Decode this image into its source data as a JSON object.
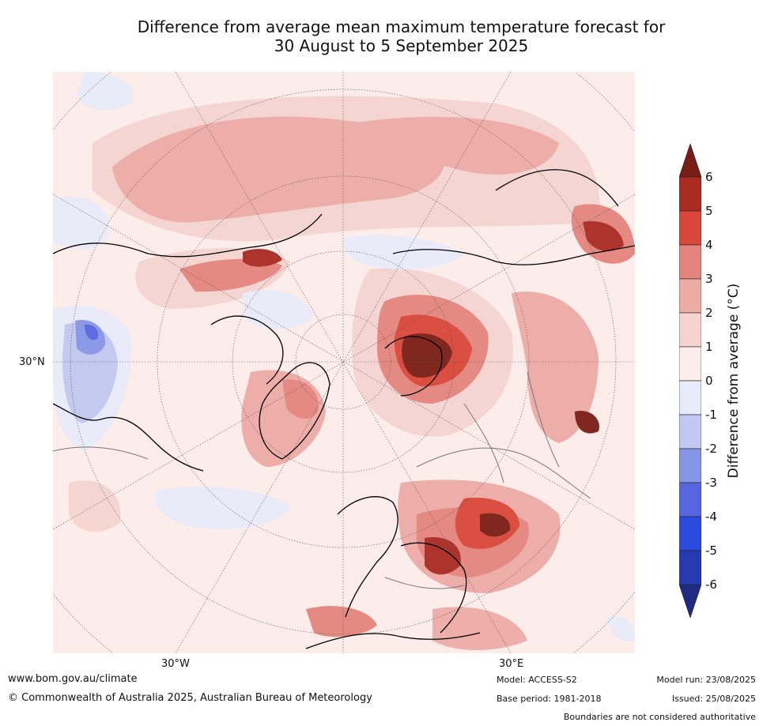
{
  "title": {
    "line1": "Difference from average mean maximum temperature forecast for",
    "line2": "30 August to 5 September 2025"
  },
  "map": {
    "projection": "north-polar-stereographic",
    "lat_label": "30°N",
    "lon_labels": [
      "30°W",
      "30°E"
    ]
  },
  "colorbar": {
    "title": "Difference from average (°C)",
    "ticks": [
      "6",
      "5",
      "4",
      "3",
      "2",
      "1",
      "0",
      "-1",
      "-2",
      "-3",
      "-4",
      "-5",
      "-6"
    ],
    "colors": [
      "#7a1d16",
      "#a92b22",
      "#d9473a",
      "#e4857d",
      "#edaba6",
      "#f5d4d0",
      "#fcecea",
      "#e8ebfa",
      "#c2c8f1",
      "#8795e6",
      "#5766e0",
      "#2b4ae0",
      "#263ab1",
      "#1f2b80"
    ]
  },
  "footer": {
    "website": "www.bom.gov.au/climate",
    "copyright": "© Commonwealth of Australia 2025, Australian Bureau of Meteorology",
    "model": "Model: ACCESS-S2",
    "base_period": "Base period: 1981-2018",
    "model_run": "Model run: 23/08/2025",
    "issued": "Issued: 25/08/2025",
    "disclaimer": "Boundaries are not considered authoritative"
  }
}
